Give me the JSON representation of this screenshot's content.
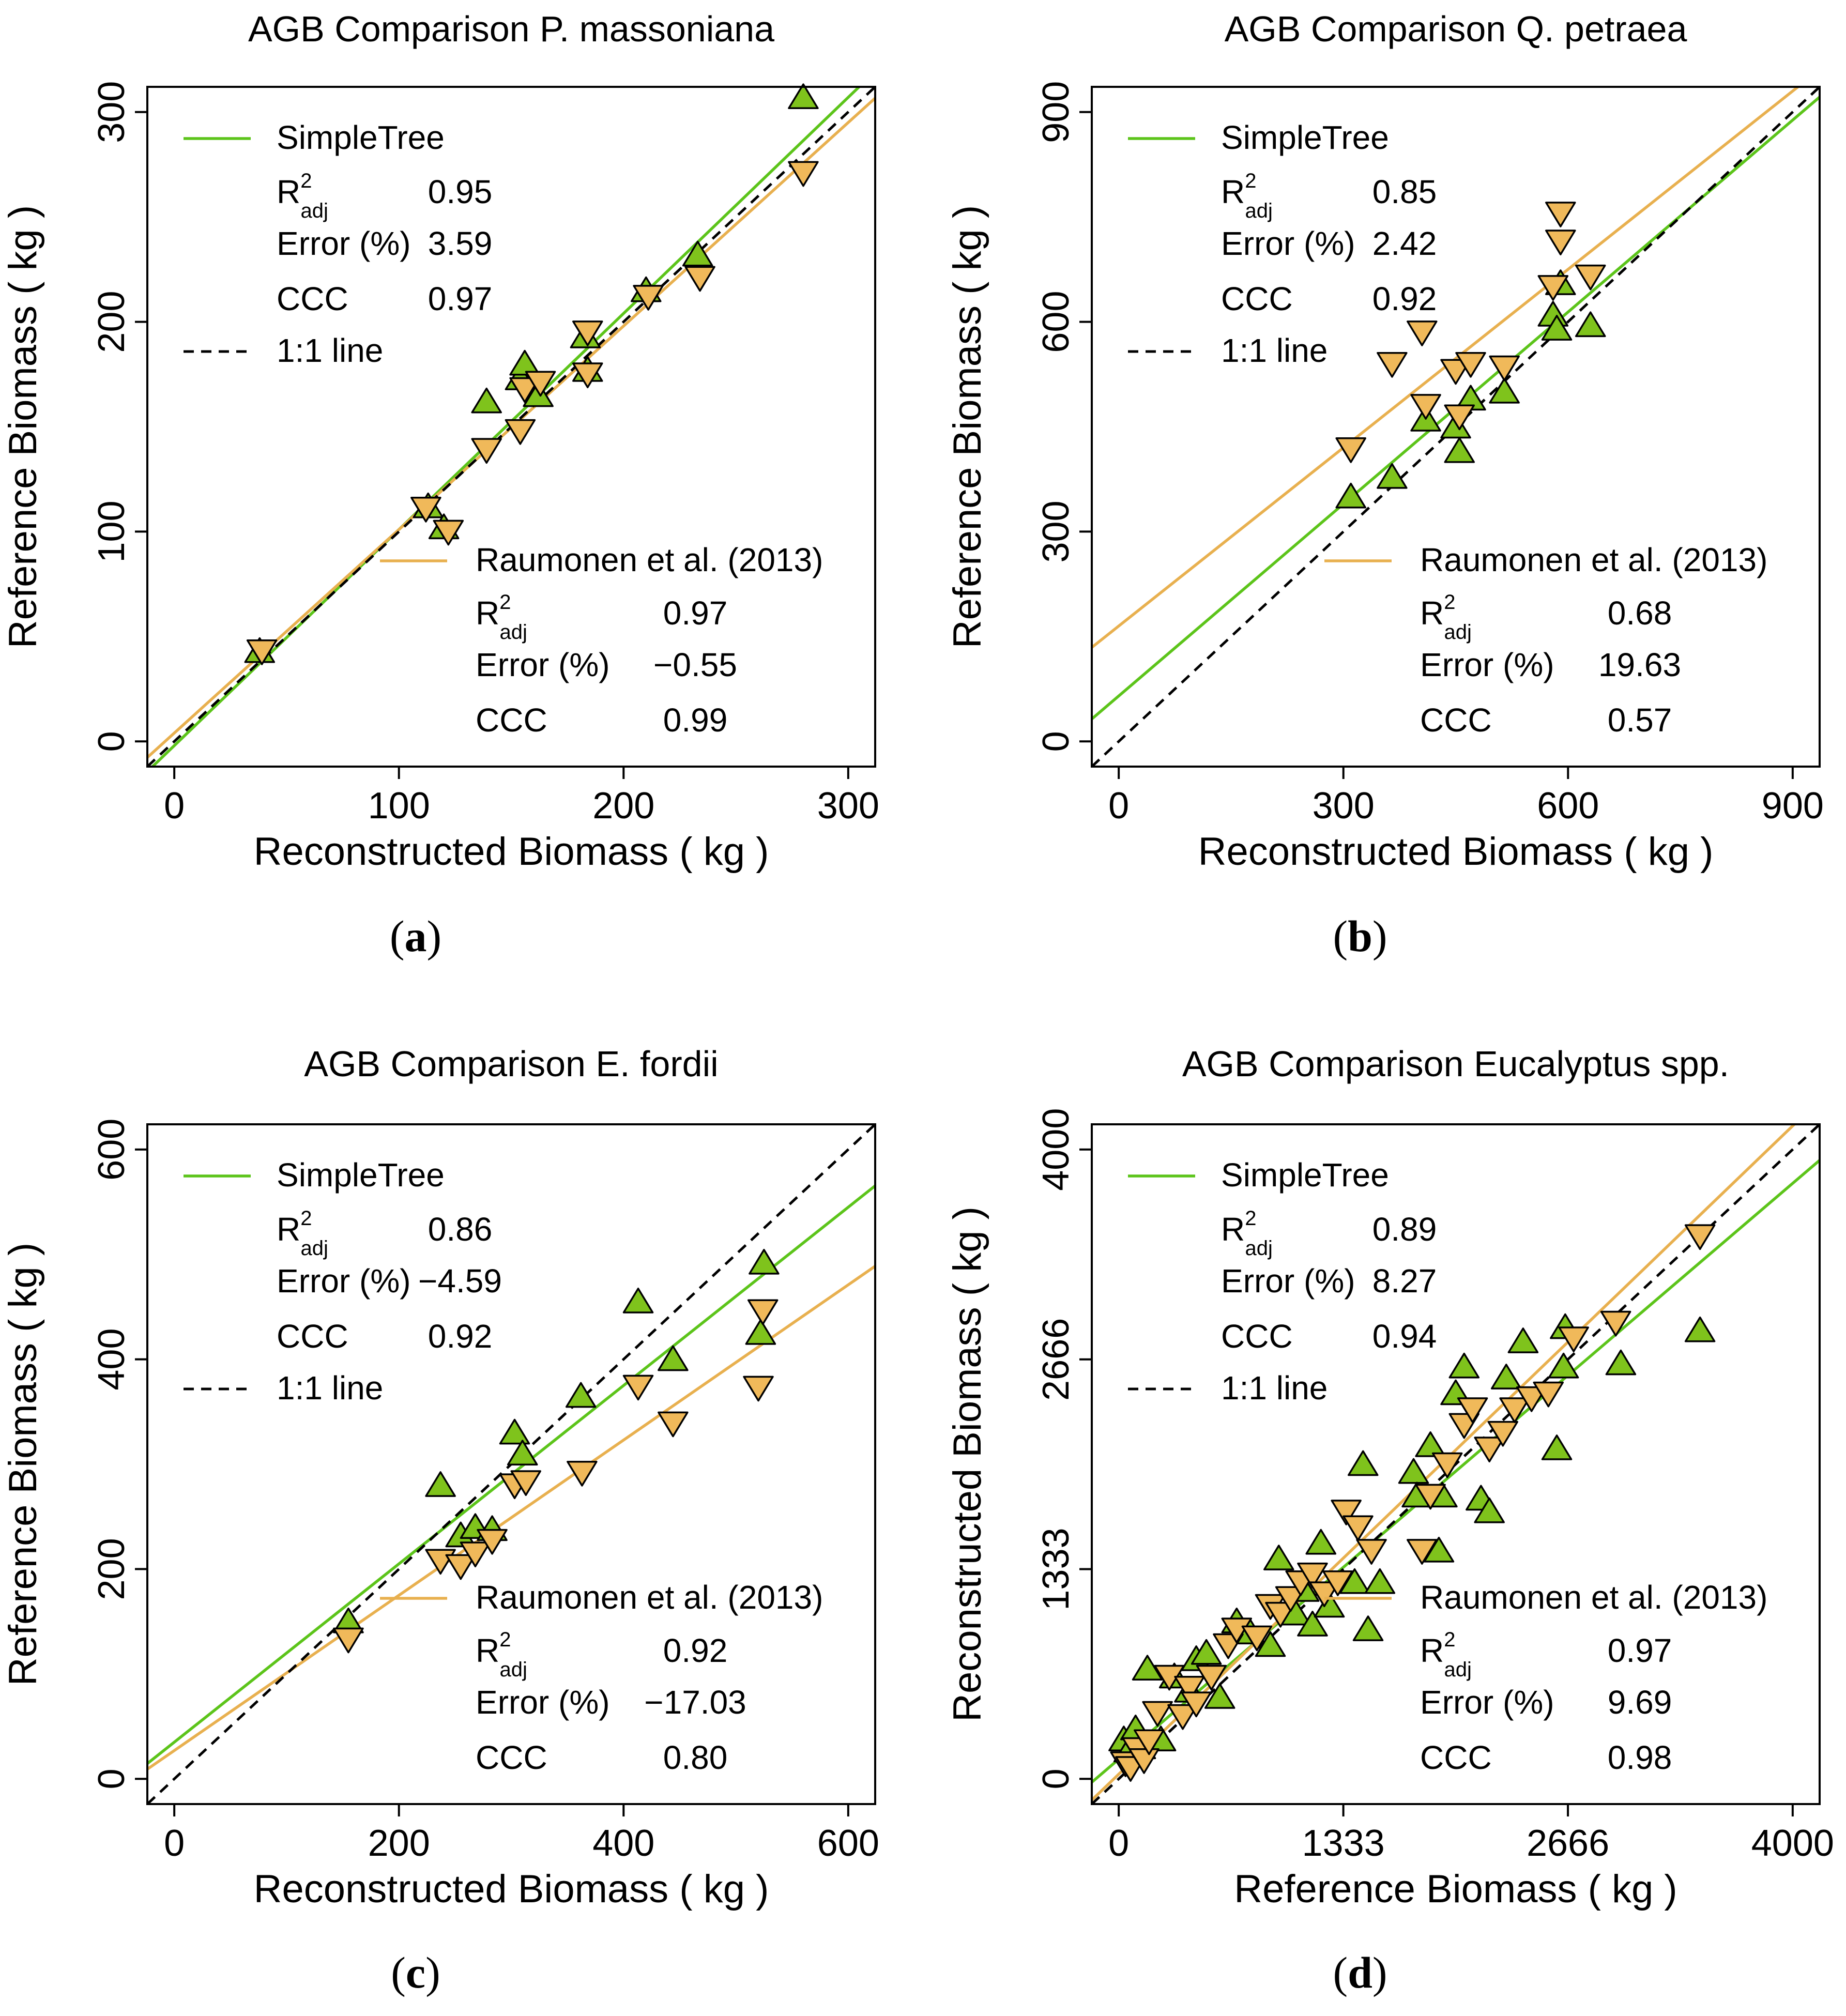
{
  "colors": {
    "simpletree": "#5cc41a",
    "raumonen": "#e8b04f",
    "triangle_up_fill": "#7fc31c",
    "triangle_down_fill": "#f0b95a",
    "marker_stroke": "#000000"
  },
  "chart_data": [
    {
      "type": "scatter",
      "panel_id": "a",
      "panel_label": "a",
      "title": "AGB Comparison P. massoniana",
      "xlabel": "Reconstructed Biomass ( kg )",
      "ylabel": "Reference Biomass ( kg )",
      "xlim": [
        -12,
        312
      ],
      "ylim": [
        -12,
        312
      ],
      "xticks": [
        0,
        100,
        200,
        300
      ],
      "yticks": [
        0,
        100,
        200,
        300
      ],
      "identity_line": true,
      "legend": {
        "simpletree": {
          "name": "SimpleTree",
          "r2_label": "R",
          "r2_sup": "2",
          "r2_sub": "adj",
          "r2_value": "0.95",
          "error_label": "Error (%)",
          "error_value": "3.59",
          "ccc_label": "CCC",
          "ccc_value": "0.97",
          "identity_label": "1:1 line"
        },
        "raumonen": {
          "name": "Raumonen et al. (2013)",
          "r2_label": "R",
          "r2_sup": "2",
          "r2_sub": "adj",
          "r2_value": "0.97",
          "error_label": "Error (%)",
          "error_value": "−0.55",
          "ccc_label": "CCC",
          "ccc_value": "0.99"
        }
      },
      "series": [
        {
          "name": "SimpleTree",
          "marker": "triangle-up",
          "fit": {
            "slope": 1.03,
            "intercept": -2
          },
          "points": [
            [
              38,
              43
            ],
            [
              113,
              112
            ],
            [
              120,
              102
            ],
            [
              139,
              162
            ],
            [
              154,
              173
            ],
            [
              156,
              180
            ],
            [
              162,
              165
            ],
            [
              183,
              193
            ],
            [
              184,
              177
            ],
            [
              210,
              215
            ],
            [
              233,
              232
            ],
            [
              280,
              307
            ]
          ]
        },
        {
          "name": "Raumonen et al. (2013)",
          "marker": "triangle-down",
          "fit": {
            "slope": 0.97,
            "intercept": 4
          },
          "points": [
            [
              39,
              43
            ],
            [
              112,
              111
            ],
            [
              122,
              100
            ],
            [
              139,
              139
            ],
            [
              154,
              148
            ],
            [
              156,
              168
            ],
            [
              163,
              171
            ],
            [
              184,
              195
            ],
            [
              184,
              175
            ],
            [
              211,
              212
            ],
            [
              234,
              221
            ],
            [
              280,
              271
            ]
          ]
        }
      ]
    },
    {
      "type": "scatter",
      "panel_id": "b",
      "panel_label": "b",
      "title": "AGB Comparison Q. petraea",
      "xlabel": "Reconstructed Biomass ( kg )",
      "ylabel": "Reference Biomass ( kg )",
      "xlim": [
        -36,
        936
      ],
      "ylim": [
        -36,
        936
      ],
      "xticks": [
        0,
        300,
        600,
        900
      ],
      "yticks": [
        0,
        300,
        600,
        900
      ],
      "identity_line": true,
      "legend": {
        "simpletree": {
          "name": "SimpleTree",
          "r2_label": "R",
          "r2_sup": "2",
          "r2_sub": "adj",
          "r2_value": "0.85",
          "error_label": "Error (%)",
          "error_value": "2.42",
          "ccc_label": "CCC",
          "ccc_value": "0.92",
          "identity_label": "1:1 line"
        },
        "raumonen": {
          "name": "Raumonen et al. (2013)",
          "r2_label": "R",
          "r2_sup": "2",
          "r2_sub": "adj",
          "r2_value": "0.68",
          "error_label": "Error (%)",
          "error_value": "19.63",
          "ccc_label": "CCC",
          "ccc_value": "0.57"
        }
      },
      "series": [
        {
          "name": "SimpleTree",
          "marker": "triangle-up",
          "fit": {
            "slope": 0.915,
            "intercept": 65
          },
          "points": [
            [
              310,
              350
            ],
            [
              365,
              378
            ],
            [
              410,
              460
            ],
            [
              450,
              450
            ],
            [
              455,
              415
            ],
            [
              470,
              490
            ],
            [
              515,
              500
            ],
            [
              580,
              610
            ],
            [
              585,
              590
            ],
            [
              590,
              655
            ],
            [
              630,
              595
            ]
          ]
        },
        {
          "name": "Raumonen et al. (2013)",
          "marker": "triangle-down",
          "fit": {
            "slope": 0.85,
            "intercept": 165
          },
          "points": [
            [
              310,
              418
            ],
            [
              365,
              540
            ],
            [
              405,
              585
            ],
            [
              410,
              480
            ],
            [
              450,
              530
            ],
            [
              455,
              465
            ],
            [
              470,
              540
            ],
            [
              515,
              535
            ],
            [
              580,
              650
            ],
            [
              590,
              715
            ],
            [
              590,
              755
            ],
            [
              630,
              665
            ]
          ]
        }
      ]
    },
    {
      "type": "scatter",
      "panel_id": "c",
      "panel_label": "c",
      "title": "AGB Comparison E. fordii",
      "xlabel": "Reconstructed Biomass ( kg )",
      "ylabel": "Reference Biomass ( kg )",
      "xlim": [
        -24,
        624
      ],
      "ylim": [
        -24,
        624
      ],
      "xticks": [
        0,
        200,
        400,
        600
      ],
      "yticks": [
        0,
        200,
        400,
        600
      ],
      "identity_line": true,
      "legend": {
        "simpletree": {
          "name": "SimpleTree",
          "r2_label": "R",
          "r2_sup": "2",
          "r2_sub": "adj",
          "r2_value": "0.86",
          "error_label": "Error (%)",
          "error_value": "−4.59",
          "ccc_label": "CCC",
          "ccc_value": "0.92",
          "identity_label": "1:1 line"
        },
        "raumonen": {
          "name": "Raumonen et al. (2013)",
          "r2_label": "R",
          "r2_sup": "2",
          "r2_sub": "adj",
          "r2_value": "0.92",
          "error_label": "Error (%)",
          "error_value": "−17.03",
          "ccc_label": "CCC",
          "ccc_value": "0.80"
        }
      },
      "series": [
        {
          "name": "SimpleTree",
          "marker": "triangle-up",
          "fit": {
            "slope": 0.85,
            "intercept": 35
          },
          "points": [
            [
              155,
              150
            ],
            [
              237,
              280
            ],
            [
              255,
              232
            ],
            [
              268,
              240
            ],
            [
              283,
              238
            ],
            [
              303,
              330
            ],
            [
              310,
              310
            ],
            [
              362,
              365
            ],
            [
              413,
              455
            ],
            [
              444,
              400
            ],
            [
              522,
              425
            ],
            [
              525,
              492
            ]
          ]
        },
        {
          "name": "Raumonen et al. (2013)",
          "marker": "triangle-down",
          "fit": {
            "slope": 0.74,
            "intercept": 27
          },
          "points": [
            [
              155,
              133
            ],
            [
              237,
              208
            ],
            [
              255,
              203
            ],
            [
              268,
              215
            ],
            [
              283,
              227
            ],
            [
              303,
              280
            ],
            [
              313,
              283
            ],
            [
              363,
              292
            ],
            [
              413,
              374
            ],
            [
              444,
              339
            ],
            [
              520,
              373
            ],
            [
              524,
              446
            ]
          ]
        }
      ]
    },
    {
      "type": "scatter",
      "panel_id": "d",
      "panel_label": "d",
      "title": "AGB Comparison Eucalyptus spp.",
      "xlabel": "Reference Biomass ( kg )",
      "ylabel": "Reconstructed Biomass ( kg )",
      "xlim": [
        -160,
        4160
      ],
      "ylim": [
        -160,
        4160
      ],
      "xticks": [
        0,
        1333,
        2666,
        4000
      ],
      "yticks": [
        0,
        1333,
        2666,
        4000
      ],
      "identity_line": true,
      "legend": {
        "simpletree": {
          "name": "SimpleTree",
          "r2_label": "R",
          "r2_sup": "2",
          "r2_sub": "adj",
          "r2_value": "0.89",
          "error_label": "Error (%)",
          "error_value": "8.27",
          "ccc_label": "CCC",
          "ccc_value": "0.94",
          "identity_label": "1:1 line"
        },
        "raumonen": {
          "name": "Raumonen et al. (2013)",
          "r2_label": "R",
          "r2_sup": "2",
          "r2_sub": "adj",
          "r2_value": "0.97",
          "error_label": "Error (%)",
          "error_value": "9.69",
          "ccc_label": "CCC",
          "ccc_value": "0.98"
        }
      },
      "series": [
        {
          "name": "SimpleTree",
          "marker": "triangle-up",
          "fit": {
            "slope": 0.915,
            "intercept": 125
          },
          "points": [
            [
              30,
              250
            ],
            [
              60,
              180
            ],
            [
              100,
              320
            ],
            [
              130,
              200
            ],
            [
              170,
              700
            ],
            [
              250,
              250
            ],
            [
              330,
              650
            ],
            [
              420,
              560
            ],
            [
              460,
              760
            ],
            [
              520,
              800
            ],
            [
              600,
              520
            ],
            [
              700,
              1000
            ],
            [
              780,
              930
            ],
            [
              900,
              850
            ],
            [
              950,
              1400
            ],
            [
              1050,
              1050
            ],
            [
              1100,
              1200
            ],
            [
              1150,
              980
            ],
            [
              1200,
              1500
            ],
            [
              1250,
              1100
            ],
            [
              1400,
              1250
            ],
            [
              1450,
              2000
            ],
            [
              1480,
              950
            ],
            [
              1550,
              1250
            ],
            [
              1750,
              1950
            ],
            [
              1770,
              1800
            ],
            [
              1850,
              2120
            ],
            [
              1900,
              1450
            ],
            [
              1920,
              1800
            ],
            [
              2000,
              2450
            ],
            [
              2050,
              2620
            ],
            [
              2150,
              1780
            ],
            [
              2200,
              1700
            ],
            [
              2300,
              2550
            ],
            [
              2400,
              2780
            ],
            [
              2600,
              2100
            ],
            [
              2640,
              2620
            ],
            [
              2650,
              2870
            ],
            [
              2980,
              2640
            ],
            [
              3450,
              2850
            ]
          ]
        },
        {
          "name": "Raumonen et al. (2013)",
          "marker": "triangle-down",
          "fit": {
            "slope": 1.03,
            "intercept": 30
          },
          "points": [
            [
              40,
              100
            ],
            [
              70,
              70
            ],
            [
              110,
              190
            ],
            [
              150,
              120
            ],
            [
              180,
              240
            ],
            [
              230,
              420
            ],
            [
              300,
              650
            ],
            [
              380,
              400
            ],
            [
              420,
              580
            ],
            [
              460,
              480
            ],
            [
              550,
              650
            ],
            [
              650,
              850
            ],
            [
              700,
              950
            ],
            [
              820,
              900
            ],
            [
              900,
              1100
            ],
            [
              960,
              1050
            ],
            [
              1020,
              1150
            ],
            [
              1080,
              1250
            ],
            [
              1150,
              1300
            ],
            [
              1220,
              1180
            ],
            [
              1300,
              1250
            ],
            [
              1350,
              1700
            ],
            [
              1420,
              1600
            ],
            [
              1500,
              1450
            ],
            [
              1800,
              1450
            ],
            [
              1850,
              1800
            ],
            [
              1950,
              2000
            ],
            [
              2050,
              2250
            ],
            [
              2100,
              2350
            ],
            [
              2200,
              2100
            ],
            [
              2280,
              2200
            ],
            [
              2350,
              2350
            ],
            [
              2450,
              2420
            ],
            [
              2550,
              2450
            ],
            [
              2700,
              2800
            ],
            [
              2950,
              2900
            ],
            [
              3450,
              3450
            ]
          ]
        }
      ]
    }
  ]
}
